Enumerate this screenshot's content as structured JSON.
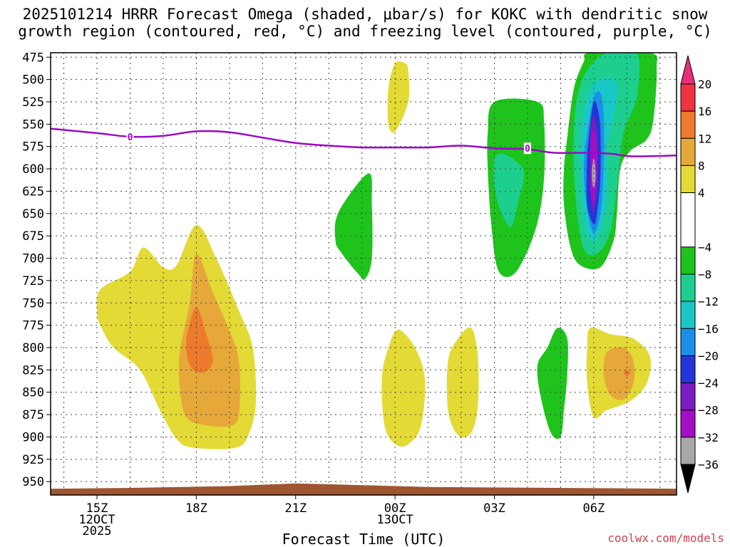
{
  "chart_data": {
    "type": "heatmap",
    "title_line1": "2025101214 HRRR Forecast Omega (shaded, μbar/s) for KOKC with dendritic snow",
    "title_line2": "growth region (contoured, red, °C) and freezing level (contoured, purple, °C)",
    "xlabel": "Forecast Time (UTC)",
    "credit": "coolwx.com/models",
    "x_range_hours": [
      13.6,
      32.5
    ],
    "y_range_hpa": [
      470,
      965
    ],
    "y_ticks": [
      475,
      500,
      525,
      550,
      575,
      600,
      625,
      650,
      675,
      700,
      725,
      750,
      775,
      800,
      825,
      850,
      875,
      900,
      925,
      950
    ],
    "x_ticks": [
      {
        "hour": 15,
        "lines": [
          "15Z",
          "12OCT",
          "2025"
        ]
      },
      {
        "hour": 18,
        "lines": [
          "18Z"
        ]
      },
      {
        "hour": 21,
        "lines": [
          "21Z"
        ]
      },
      {
        "hour": 24,
        "lines": [
          "00Z",
          "13OCT"
        ]
      },
      {
        "hour": 27,
        "lines": [
          "03Z"
        ]
      },
      {
        "hour": 30,
        "lines": [
          "06Z"
        ]
      }
    ],
    "colorbar": {
      "labels": [
        "20",
        "16",
        "12",
        "8",
        "4",
        "−4",
        "−8",
        "−12",
        "−16",
        "−20",
        "−24",
        "−28",
        "−32",
        "−36"
      ],
      "levels": [
        20,
        16,
        12,
        8,
        4,
        -4,
        -8,
        -12,
        -16,
        -20,
        -24,
        -28,
        -32,
        -36
      ],
      "bins": [
        {
          "from": 20,
          "to": 24,
          "color": "#e8307a"
        },
        {
          "from": 16,
          "to": 20,
          "color": "#ef3340"
        },
        {
          "from": 12,
          "to": 16,
          "color": "#ee7a2c"
        },
        {
          "from": 8,
          "to": 12,
          "color": "#e7a83a"
        },
        {
          "from": 4,
          "to": 8,
          "color": "#e3da35"
        },
        {
          "from": -4,
          "to": 4,
          "color": "#ffffff"
        },
        {
          "from": -8,
          "to": -4,
          "color": "#1ec41c"
        },
        {
          "from": -12,
          "to": -8,
          "color": "#1dcf8f"
        },
        {
          "from": -16,
          "to": -12,
          "color": "#1ac7c7"
        },
        {
          "from": -20,
          "to": -16,
          "color": "#1b90ea"
        },
        {
          "from": -24,
          "to": -20,
          "color": "#2236d9"
        },
        {
          "from": -28,
          "to": -24,
          "color": "#7a1bc4"
        },
        {
          "from": -32,
          "to": -28,
          "color": "#a50ec6"
        },
        {
          "from": -36,
          "to": -32,
          "color": "#a8a8a8"
        },
        {
          "from": -40,
          "to": -36,
          "color": "#000000"
        }
      ]
    },
    "freezing_level": {
      "label": "0",
      "color": "#9a09c6",
      "points": [
        [
          13.6,
          555
        ],
        [
          15,
          560
        ],
        [
          16,
          564
        ],
        [
          17,
          563
        ],
        [
          18,
          558
        ],
        [
          19,
          559
        ],
        [
          20,
          565
        ],
        [
          21,
          571
        ],
        [
          22,
          574
        ],
        [
          23,
          576
        ],
        [
          24,
          576
        ],
        [
          25,
          576
        ],
        [
          26,
          574
        ],
        [
          27,
          577
        ],
        [
          28,
          578
        ],
        [
          28.8,
          582
        ],
        [
          29.8,
          582
        ],
        [
          30.5,
          583
        ],
        [
          31.2,
          586
        ],
        [
          32.5,
          585
        ]
      ],
      "label_positions": [
        [
          16,
          564
        ],
        [
          28.0,
          577
        ]
      ]
    },
    "terrain": {
      "color": "#9f5530",
      "points": [
        [
          13.6,
          958
        ],
        [
          16,
          957
        ],
        [
          19,
          955
        ],
        [
          21,
          952
        ],
        [
          22,
          953
        ],
        [
          25,
          956
        ],
        [
          32.5,
          958
        ]
      ]
    },
    "omega_regions": [
      {
        "level": 4,
        "color": "#e3da35",
        "points": [
          [
            15.1,
            735
          ],
          [
            16,
            715
          ],
          [
            16.4,
            688
          ],
          [
            17.0,
            710
          ],
          [
            17.4,
            708
          ],
          [
            18.0,
            663
          ],
          [
            18.6,
            700
          ],
          [
            19.3,
            760
          ],
          [
            19.7,
            800
          ],
          [
            19.8,
            860
          ],
          [
            19.6,
            895
          ],
          [
            19.2,
            912
          ],
          [
            17.9,
            912
          ],
          [
            17.4,
            902
          ],
          [
            16.9,
            870
          ],
          [
            16.3,
            825
          ],
          [
            15.5,
            800
          ],
          [
            15.1,
            775
          ],
          [
            15.0,
            760
          ]
        ]
      },
      {
        "level": 8,
        "color": "#e7a83a",
        "points": [
          [
            17.8,
            750
          ],
          [
            18.0,
            695
          ],
          [
            18.5,
            738
          ],
          [
            19.1,
            790
          ],
          [
            19.3,
            820
          ],
          [
            19.3,
            870
          ],
          [
            19.1,
            887
          ],
          [
            18.3,
            887
          ],
          [
            17.7,
            878
          ],
          [
            17.5,
            845
          ],
          [
            17.5,
            805
          ]
        ]
      },
      {
        "level": 12,
        "color": "#ee7a2c",
        "points": [
          [
            18.0,
            755
          ],
          [
            18.3,
            785
          ],
          [
            18.5,
            815
          ],
          [
            18.2,
            828
          ],
          [
            17.8,
            820
          ],
          [
            17.7,
            790
          ]
        ]
      },
      {
        "level": 4,
        "color": "#e3da35",
        "points": [
          [
            23.8,
            550
          ],
          [
            23.8,
            510
          ],
          [
            24.0,
            482
          ],
          [
            24.3,
            482
          ],
          [
            24.4,
            490
          ],
          [
            24.4,
            525
          ],
          [
            24.0,
            558
          ]
        ]
      },
      {
        "level": 4,
        "color": "#e3da35",
        "points": [
          [
            24.1,
            780
          ],
          [
            24.6,
            800
          ],
          [
            24.9,
            835
          ],
          [
            24.8,
            885
          ],
          [
            24.5,
            905
          ],
          [
            24.1,
            910
          ],
          [
            23.7,
            890
          ],
          [
            23.6,
            835
          ],
          [
            23.8,
            800
          ]
        ]
      },
      {
        "level": 4,
        "color": "#e3da35",
        "points": [
          [
            26.3,
            778
          ],
          [
            26.5,
            810
          ],
          [
            26.5,
            865
          ],
          [
            26.3,
            895
          ],
          [
            25.9,
            898
          ],
          [
            25.6,
            870
          ],
          [
            25.6,
            815
          ],
          [
            25.9,
            790
          ]
        ]
      },
      {
        "level": 4,
        "color": "#e3da35",
        "points": [
          [
            29.9,
            778
          ],
          [
            30.5,
            785
          ],
          [
            31.2,
            790
          ],
          [
            31.7,
            810
          ],
          [
            31.6,
            840
          ],
          [
            31.1,
            860
          ],
          [
            30.4,
            870
          ],
          [
            30.0,
            878
          ],
          [
            29.8,
            840
          ],
          [
            29.8,
            800
          ]
        ]
      },
      {
        "level": 8,
        "color": "#e7a83a",
        "points": [
          [
            30.4,
            805
          ],
          [
            30.9,
            800
          ],
          [
            31.2,
            815
          ],
          [
            31.2,
            840
          ],
          [
            30.9,
            858
          ],
          [
            30.5,
            853
          ],
          [
            30.3,
            830
          ]
        ]
      },
      {
        "level": 12,
        "color": "#ee7a2c",
        "points": [
          [
            31.0,
            825
          ],
          [
            31.1,
            828
          ],
          [
            31.0,
            832
          ],
          [
            30.9,
            828
          ]
        ]
      },
      {
        "level": -4,
        "color": "#1ec41c",
        "points": [
          [
            22.3,
            648
          ],
          [
            23.2,
            605
          ],
          [
            23.3,
            640
          ],
          [
            23.3,
            700
          ],
          [
            23.1,
            723
          ],
          [
            22.9,
            718
          ],
          [
            22.4,
            695
          ],
          [
            22.2,
            680
          ]
        ]
      },
      {
        "level": -4,
        "color": "#1ec41c",
        "points": [
          [
            27.0,
            525
          ],
          [
            28.3,
            525
          ],
          [
            28.5,
            548
          ],
          [
            28.5,
            610
          ],
          [
            28.3,
            660
          ],
          [
            27.9,
            700
          ],
          [
            27.5,
            720
          ],
          [
            27.1,
            712
          ],
          [
            26.9,
            660
          ],
          [
            26.8,
            600
          ],
          [
            26.8,
            560
          ]
        ]
      },
      {
        "level": -8,
        "color": "#1dcf8f",
        "points": [
          [
            27.0,
            590
          ],
          [
            27.2,
            583
          ],
          [
            27.6,
            590
          ],
          [
            27.9,
            605
          ],
          [
            27.7,
            640
          ],
          [
            27.5,
            665
          ],
          [
            27.2,
            648
          ],
          [
            27.0,
            620
          ]
        ]
      },
      {
        "level": -4,
        "color": "#1ec41c",
        "points": [
          [
            29.2,
            565
          ],
          [
            29.4,
            510
          ],
          [
            29.7,
            480
          ],
          [
            29.9,
            470
          ],
          [
            31.7,
            470
          ],
          [
            31.9,
            488
          ],
          [
            31.8,
            545
          ],
          [
            31.6,
            567
          ],
          [
            31.1,
            580
          ],
          [
            30.8,
            600
          ],
          [
            30.7,
            650
          ],
          [
            30.6,
            680
          ],
          [
            30.2,
            710
          ],
          [
            29.6,
            708
          ],
          [
            29.3,
            688
          ],
          [
            29.1,
            640
          ],
          [
            29.1,
            600
          ]
        ]
      },
      {
        "level": -8,
        "color": "#1dcf8f",
        "points": [
          [
            29.4,
            560
          ],
          [
            29.5,
            520
          ],
          [
            29.8,
            490
          ],
          [
            30.4,
            470
          ],
          [
            31.3,
            470
          ],
          [
            31.3,
            520
          ],
          [
            30.9,
            560
          ],
          [
            30.7,
            620
          ],
          [
            30.5,
            670
          ],
          [
            30.1,
            695
          ],
          [
            29.7,
            690
          ],
          [
            29.5,
            650
          ],
          [
            29.4,
            600
          ]
        ]
      },
      {
        "level": -12,
        "color": "#1ac7c7",
        "points": [
          [
            29.6,
            570
          ],
          [
            29.8,
            520
          ],
          [
            30.2,
            500
          ],
          [
            30.7,
            505
          ],
          [
            30.6,
            540
          ],
          [
            30.4,
            580
          ],
          [
            30.4,
            630
          ],
          [
            30.2,
            670
          ],
          [
            29.9,
            680
          ],
          [
            29.7,
            650
          ]
        ]
      },
      {
        "level": -16,
        "color": "#1b90ea",
        "points": [
          [
            29.8,
            560
          ],
          [
            30.0,
            520
          ],
          [
            30.2,
            515
          ],
          [
            30.3,
            540
          ],
          [
            30.3,
            600
          ],
          [
            30.2,
            650
          ],
          [
            30.0,
            672
          ],
          [
            29.8,
            645
          ],
          [
            29.7,
            600
          ]
        ]
      },
      {
        "level": -20,
        "color": "#2236d9",
        "points": [
          [
            29.9,
            548
          ],
          [
            30.0,
            525
          ],
          [
            30.1,
            530
          ],
          [
            30.2,
            555
          ],
          [
            30.2,
            610
          ],
          [
            30.1,
            650
          ],
          [
            30.0,
            662
          ],
          [
            29.8,
            640
          ],
          [
            29.8,
            590
          ]
        ]
      },
      {
        "level": -24,
        "color": "#7a1bc4",
        "points": [
          [
            29.9,
            560
          ],
          [
            30.0,
            540
          ],
          [
            30.1,
            560
          ],
          [
            30.1,
            610
          ],
          [
            30.0,
            648
          ],
          [
            29.9,
            630
          ],
          [
            29.9,
            590
          ]
        ]
      },
      {
        "level": -28,
        "color": "#a50ec6",
        "points": [
          [
            29.9,
            575
          ],
          [
            30.0,
            555
          ],
          [
            30.1,
            578
          ],
          [
            30.1,
            615
          ],
          [
            30.0,
            640
          ],
          [
            29.9,
            620
          ],
          [
            29.9,
            595
          ]
        ]
      },
      {
        "level": -32,
        "color": "#a8a8a8",
        "points": [
          [
            29.95,
            600
          ],
          [
            30.0,
            588
          ],
          [
            30.05,
            600
          ],
          [
            30.05,
            612
          ],
          [
            30.0,
            622
          ],
          [
            29.95,
            612
          ]
        ]
      },
      {
        "level": -4,
        "color": "#1ec41c",
        "points": [
          [
            28.9,
            778
          ],
          [
            29.2,
            790
          ],
          [
            29.2,
            830
          ],
          [
            29.1,
            870
          ],
          [
            29.0,
            900
          ],
          [
            28.7,
            895
          ],
          [
            28.4,
            855
          ],
          [
            28.3,
            820
          ],
          [
            28.6,
            800
          ]
        ]
      }
    ]
  }
}
